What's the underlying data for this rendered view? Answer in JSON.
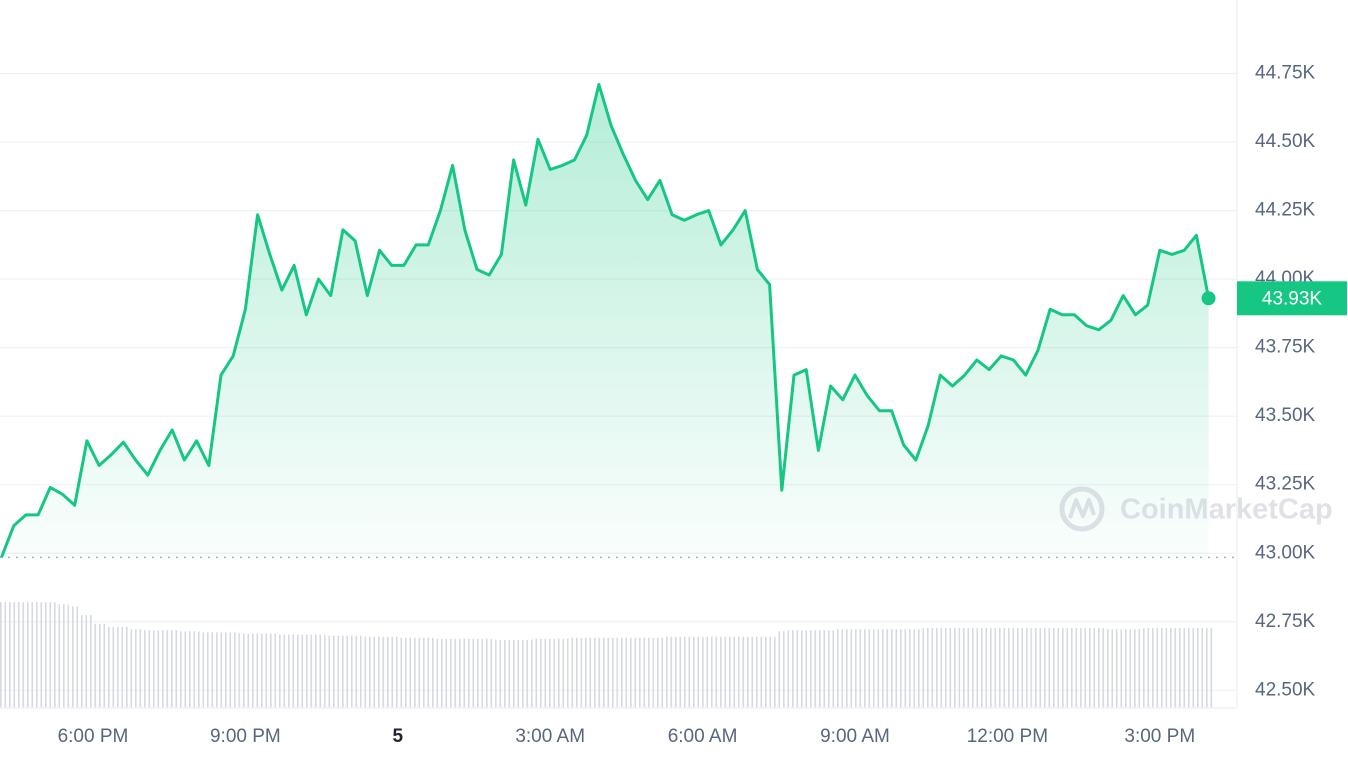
{
  "chart_data": {
    "type": "line",
    "color": "#16c784",
    "watermark": "CoinMarketCap",
    "current_price_label": "43.93K",
    "xlim": [
      16.17,
      40.52
    ],
    "xticks": [
      {
        "value": 18,
        "label": "6:00 PM"
      },
      {
        "value": 21,
        "label": "9:00 PM"
      },
      {
        "value": 24,
        "label": "5"
      },
      {
        "value": 27,
        "label": "3:00 AM"
      },
      {
        "value": 30,
        "label": "6:00 AM"
      },
      {
        "value": 33,
        "label": "9:00 AM"
      },
      {
        "value": 36,
        "label": "12:00 PM"
      },
      {
        "value": 39,
        "label": "3:00 PM"
      }
    ],
    "ylim": [
      42450,
      45000
    ],
    "yticks": [
      {
        "value": 42500,
        "label": "42.50K"
      },
      {
        "value": 42750,
        "label": "42.75K"
      },
      {
        "value": 43000,
        "label": "43.00K"
      },
      {
        "value": 43250,
        "label": "43.25K"
      },
      {
        "value": 43500,
        "label": "43.50K"
      },
      {
        "value": 43750,
        "label": "43.75K"
      },
      {
        "value": 44000,
        "label": "44.00K"
      },
      {
        "value": 44250,
        "label": "44.25K"
      },
      {
        "value": 44500,
        "label": "44.50K"
      },
      {
        "value": 44750,
        "label": "44.75K"
      }
    ],
    "grid": true,
    "x": [
      16.2,
      16.44,
      16.68,
      16.92,
      17.16,
      17.4,
      17.64,
      17.88,
      18.12,
      18.36,
      18.6,
      18.84,
      19.08,
      19.32,
      19.56,
      19.8,
      20.04,
      20.28,
      20.52,
      20.76,
      21,
      21.24,
      21.48,
      21.72,
      21.96,
      22.2,
      22.44,
      22.68,
      22.92,
      23.16,
      23.4,
      23.64,
      23.88,
      24.12,
      24.36,
      24.6,
      24.84,
      25.08,
      25.32,
      25.56,
      25.8,
      26.04,
      26.28,
      26.52,
      26.76,
      27,
      27.24,
      27.48,
      27.72,
      27.96,
      28.2,
      28.44,
      28.68,
      28.92,
      29.16,
      29.4,
      29.64,
      29.88,
      30.12,
      30.36,
      30.6,
      30.84,
      31.08,
      31.32,
      31.56,
      31.8,
      32.04,
      32.28,
      32.52,
      32.76,
      33,
      33.24,
      33.48,
      33.72,
      33.96,
      34.2,
      34.44,
      34.68,
      34.92,
      35.16,
      35.4,
      35.64,
      35.88,
      36.12,
      36.36,
      36.6,
      36.84,
      37.08,
      37.32,
      37.56,
      37.8,
      38.04,
      38.28,
      38.52,
      38.76,
      39,
      39.24,
      39.48,
      39.72,
      39.96
    ],
    "values": [
      42985,
      43100,
      43140,
      43140,
      43240,
      43215,
      43175,
      43410,
      43320,
      43360,
      43405,
      43340,
      43285,
      43375,
      43450,
      43340,
      43410,
      43320,
      43650,
      43720,
      43890,
      44235,
      44090,
      43960,
      44050,
      43870,
      44000,
      43940,
      44180,
      44140,
      43940,
      44105,
      44050,
      44050,
      44125,
      44125,
      44250,
      44415,
      44180,
      44035,
      44015,
      44090,
      44435,
      44270,
      44510,
      44400,
      44415,
      44435,
      44525,
      44710,
      44560,
      44455,
      44360,
      44290,
      44360,
      44235,
      44215,
      44235,
      44250,
      44125,
      44180,
      44250,
      44035,
      43980,
      43230,
      43650,
      43670,
      43375,
      43610,
      43560,
      43650,
      43575,
      43520,
      43520,
      43395,
      43340,
      43465,
      43650,
      43610,
      43650,
      43705,
      43670,
      43720,
      43705,
      43650,
      43740,
      43890,
      43870,
      43870,
      43830,
      43815,
      43850,
      43940,
      43870,
      43905,
      44105,
      44090,
      44105,
      44160,
      43930
    ],
    "volume_color": "#d5d9e2",
    "volume_lim": [
      0,
      100
    ],
    "volume": [
      98,
      98,
      98,
      98,
      98,
      96,
      94,
      86,
      78,
      75,
      75,
      73,
      72,
      72,
      72,
      71,
      71,
      70,
      70,
      70,
      69,
      69,
      69,
      68,
      68,
      68,
      68,
      67,
      67,
      67,
      66,
      66,
      66,
      65,
      65,
      65,
      64,
      64,
      64,
      64,
      64,
      63,
      63,
      63,
      64,
      64,
      64,
      65,
      65,
      65,
      65,
      65,
      65,
      65,
      65,
      66,
      66,
      66,
      66,
      66,
      66,
      66,
      66,
      66,
      71,
      72,
      72,
      72,
      72,
      73,
      73,
      73,
      73,
      73,
      73,
      73,
      74,
      74,
      74,
      74,
      74,
      74,
      74,
      74,
      74,
      74,
      74,
      74,
      74,
      74,
      74,
      73,
      73,
      73,
      74,
      74,
      74,
      74,
      74,
      74
    ]
  }
}
